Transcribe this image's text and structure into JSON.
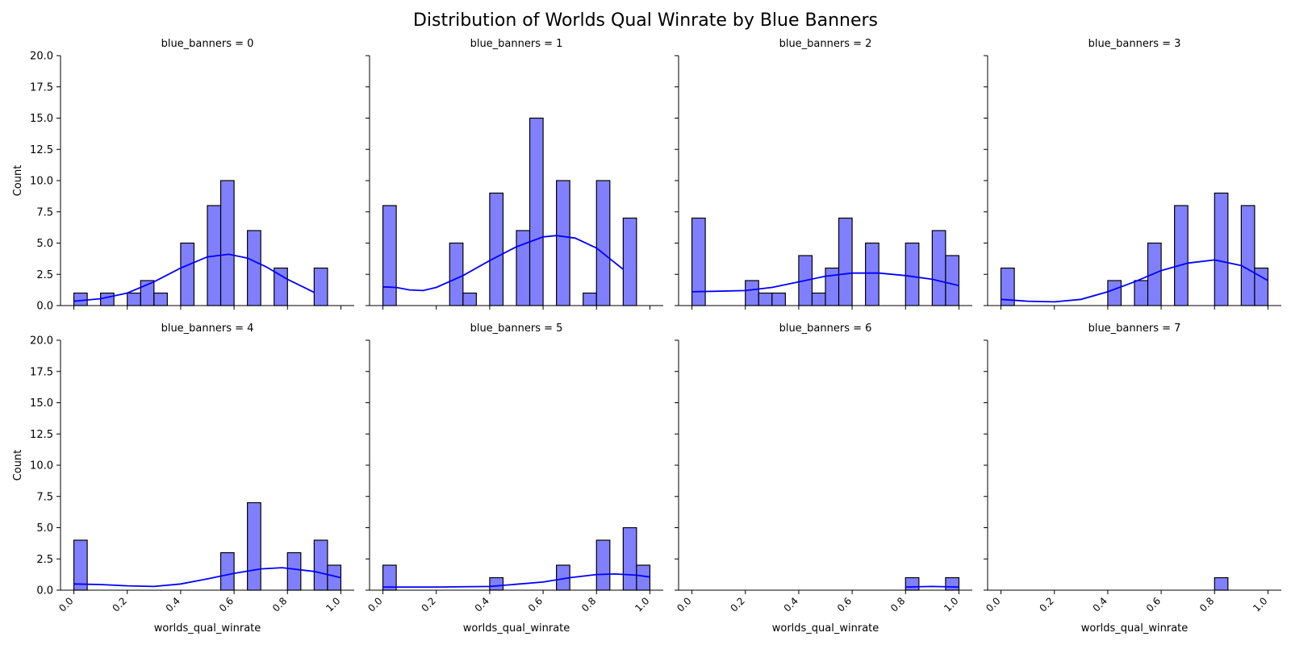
{
  "chart_data": {
    "type": "bar",
    "title": "Distribution of Worlds Qual Winrate by Blue Banners",
    "xlabel": "worlds_qual_winrate",
    "ylabel": "Count",
    "xlim": [
      -0.05,
      1.05
    ],
    "ylim": [
      0,
      20
    ],
    "yticks": [
      "0.0",
      "2.5",
      "5.0",
      "7.5",
      "10.0",
      "12.5",
      "15.0",
      "17.5",
      "20.0"
    ],
    "xticks": [
      "0.0",
      "0.2",
      "0.4",
      "0.6",
      "0.8",
      "1.0"
    ],
    "colors": {
      "bar_fill": "#8080ff",
      "bar_edge": "#000000",
      "kde_line": "#0000ff"
    },
    "panels": [
      {
        "title": "blue_banners = 0",
        "bars": [
          {
            "x0": 0.0,
            "x1": 0.05,
            "count": 1
          },
          {
            "x0": 0.1,
            "x1": 0.15,
            "count": 1
          },
          {
            "x0": 0.2,
            "x1": 0.25,
            "count": 1
          },
          {
            "x0": 0.25,
            "x1": 0.3,
            "count": 2
          },
          {
            "x0": 0.3,
            "x1": 0.35,
            "count": 1
          },
          {
            "x0": 0.4,
            "x1": 0.45,
            "count": 5
          },
          {
            "x0": 0.5,
            "x1": 0.55,
            "count": 8
          },
          {
            "x0": 0.55,
            "x1": 0.6,
            "count": 10
          },
          {
            "x0": 0.65,
            "x1": 0.7,
            "count": 6
          },
          {
            "x0": 0.75,
            "x1": 0.8,
            "count": 3
          },
          {
            "x0": 0.9,
            "x1": 0.95,
            "count": 3
          }
        ],
        "kde": [
          [
            0.0,
            0.35
          ],
          [
            0.1,
            0.55
          ],
          [
            0.2,
            1.0
          ],
          [
            0.3,
            1.9
          ],
          [
            0.4,
            3.0
          ],
          [
            0.5,
            3.9
          ],
          [
            0.58,
            4.1
          ],
          [
            0.65,
            3.8
          ],
          [
            0.72,
            3.1
          ],
          [
            0.8,
            2.1
          ],
          [
            0.9,
            1.05
          ]
        ]
      },
      {
        "title": "blue_banners = 1",
        "bars": [
          {
            "x0": 0.0,
            "x1": 0.05,
            "count": 8
          },
          {
            "x0": 0.25,
            "x1": 0.3,
            "count": 5
          },
          {
            "x0": 0.3,
            "x1": 0.35,
            "count": 1
          },
          {
            "x0": 0.4,
            "x1": 0.45,
            "count": 9
          },
          {
            "x0": 0.5,
            "x1": 0.55,
            "count": 6
          },
          {
            "x0": 0.55,
            "x1": 0.6,
            "count": 15
          },
          {
            "x0": 0.65,
            "x1": 0.7,
            "count": 10
          },
          {
            "x0": 0.75,
            "x1": 0.8,
            "count": 1
          },
          {
            "x0": 0.8,
            "x1": 0.85,
            "count": 10
          },
          {
            "x0": 0.9,
            "x1": 0.95,
            "count": 7
          }
        ],
        "kde": [
          [
            0.0,
            1.5
          ],
          [
            0.05,
            1.45
          ],
          [
            0.1,
            1.25
          ],
          [
            0.15,
            1.2
          ],
          [
            0.2,
            1.45
          ],
          [
            0.3,
            2.4
          ],
          [
            0.4,
            3.6
          ],
          [
            0.5,
            4.7
          ],
          [
            0.6,
            5.5
          ],
          [
            0.65,
            5.6
          ],
          [
            0.72,
            5.4
          ],
          [
            0.8,
            4.6
          ],
          [
            0.9,
            2.9
          ]
        ]
      },
      {
        "title": "blue_banners = 2",
        "bars": [
          {
            "x0": 0.0,
            "x1": 0.05,
            "count": 7
          },
          {
            "x0": 0.2,
            "x1": 0.25,
            "count": 2
          },
          {
            "x0": 0.25,
            "x1": 0.3,
            "count": 1
          },
          {
            "x0": 0.3,
            "x1": 0.35,
            "count": 1
          },
          {
            "x0": 0.4,
            "x1": 0.45,
            "count": 4
          },
          {
            "x0": 0.45,
            "x1": 0.5,
            "count": 1
          },
          {
            "x0": 0.5,
            "x1": 0.55,
            "count": 3
          },
          {
            "x0": 0.55,
            "x1": 0.6,
            "count": 7
          },
          {
            "x0": 0.65,
            "x1": 0.7,
            "count": 5
          },
          {
            "x0": 0.8,
            "x1": 0.85,
            "count": 5
          },
          {
            "x0": 0.9,
            "x1": 0.95,
            "count": 6
          },
          {
            "x0": 0.95,
            "x1": 1.0,
            "count": 4
          }
        ],
        "kde": [
          [
            0.0,
            1.1
          ],
          [
            0.1,
            1.15
          ],
          [
            0.2,
            1.2
          ],
          [
            0.3,
            1.45
          ],
          [
            0.4,
            1.9
          ],
          [
            0.5,
            2.35
          ],
          [
            0.6,
            2.6
          ],
          [
            0.7,
            2.6
          ],
          [
            0.8,
            2.4
          ],
          [
            0.9,
            2.1
          ],
          [
            1.0,
            1.6
          ]
        ]
      },
      {
        "title": "blue_banners = 3",
        "bars": [
          {
            "x0": 0.0,
            "x1": 0.05,
            "count": 3
          },
          {
            "x0": 0.4,
            "x1": 0.45,
            "count": 2
          },
          {
            "x0": 0.5,
            "x1": 0.55,
            "count": 2
          },
          {
            "x0": 0.55,
            "x1": 0.6,
            "count": 5
          },
          {
            "x0": 0.65,
            "x1": 0.7,
            "count": 8
          },
          {
            "x0": 0.8,
            "x1": 0.85,
            "count": 9
          },
          {
            "x0": 0.9,
            "x1": 0.95,
            "count": 8
          },
          {
            "x0": 0.95,
            "x1": 1.0,
            "count": 3
          }
        ],
        "kde": [
          [
            0.0,
            0.5
          ],
          [
            0.1,
            0.35
          ],
          [
            0.2,
            0.3
          ],
          [
            0.3,
            0.5
          ],
          [
            0.4,
            1.1
          ],
          [
            0.5,
            1.9
          ],
          [
            0.6,
            2.8
          ],
          [
            0.7,
            3.4
          ],
          [
            0.8,
            3.65
          ],
          [
            0.9,
            3.2
          ],
          [
            1.0,
            2.0
          ]
        ]
      },
      {
        "title": "blue_banners = 4",
        "bars": [
          {
            "x0": 0.0,
            "x1": 0.05,
            "count": 4
          },
          {
            "x0": 0.55,
            "x1": 0.6,
            "count": 3
          },
          {
            "x0": 0.65,
            "x1": 0.7,
            "count": 7
          },
          {
            "x0": 0.8,
            "x1": 0.85,
            "count": 3
          },
          {
            "x0": 0.9,
            "x1": 0.95,
            "count": 4
          },
          {
            "x0": 0.95,
            "x1": 1.0,
            "count": 2
          }
        ],
        "kde": [
          [
            0.0,
            0.5
          ],
          [
            0.1,
            0.45
          ],
          [
            0.2,
            0.35
          ],
          [
            0.3,
            0.3
          ],
          [
            0.4,
            0.5
          ],
          [
            0.5,
            0.9
          ],
          [
            0.6,
            1.35
          ],
          [
            0.7,
            1.7
          ],
          [
            0.78,
            1.8
          ],
          [
            0.9,
            1.5
          ],
          [
            1.0,
            1.0
          ]
        ]
      },
      {
        "title": "blue_banners = 5",
        "bars": [
          {
            "x0": 0.0,
            "x1": 0.05,
            "count": 2
          },
          {
            "x0": 0.4,
            "x1": 0.45,
            "count": 1
          },
          {
            "x0": 0.65,
            "x1": 0.7,
            "count": 2
          },
          {
            "x0": 0.8,
            "x1": 0.85,
            "count": 4
          },
          {
            "x0": 0.9,
            "x1": 0.95,
            "count": 5
          },
          {
            "x0": 0.95,
            "x1": 1.0,
            "count": 2
          }
        ],
        "kde": [
          [
            0.0,
            0.25
          ],
          [
            0.2,
            0.25
          ],
          [
            0.4,
            0.3
          ],
          [
            0.6,
            0.65
          ],
          [
            0.7,
            1.0
          ],
          [
            0.8,
            1.25
          ],
          [
            0.87,
            1.3
          ],
          [
            0.95,
            1.2
          ],
          [
            1.0,
            1.05
          ]
        ]
      },
      {
        "title": "blue_banners = 6",
        "bars": [
          {
            "x0": 0.8,
            "x1": 0.85,
            "count": 1
          },
          {
            "x0": 0.95,
            "x1": 1.0,
            "count": 1
          }
        ],
        "kde": [
          [
            0.8,
            0.25
          ],
          [
            0.9,
            0.3
          ],
          [
            1.0,
            0.25
          ]
        ]
      },
      {
        "title": "blue_banners = 7",
        "bars": [
          {
            "x0": 0.8,
            "x1": 0.85,
            "count": 1
          }
        ],
        "kde": []
      }
    ]
  }
}
